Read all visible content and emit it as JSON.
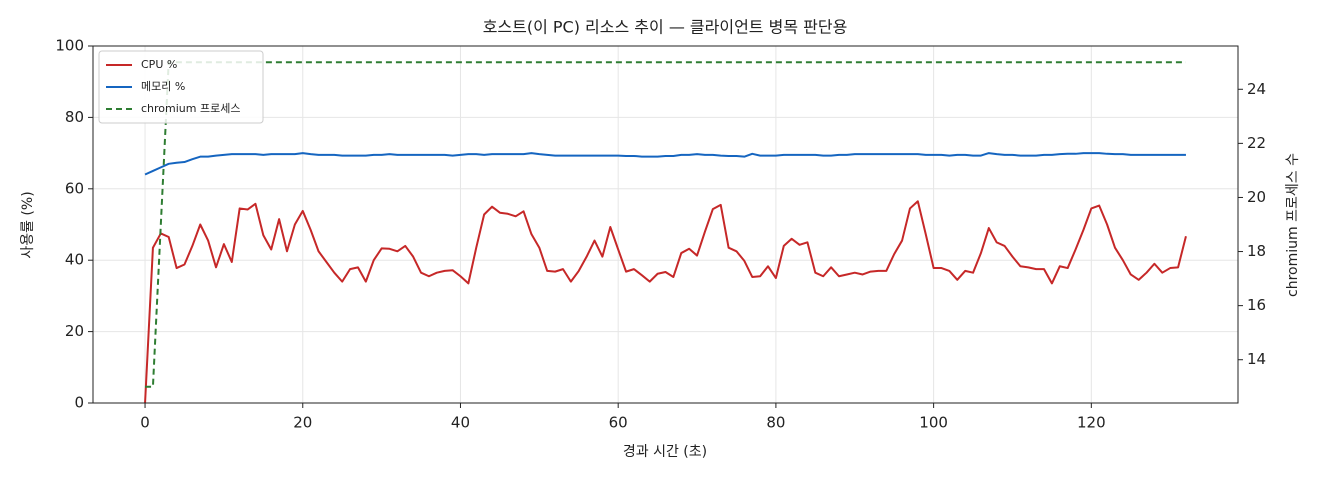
{
  "chart_data": {
    "type": "line",
    "title": "호스트(이 PC) 리소스 추이 — 클라이언트 병목 판단용",
    "x_label": "경과 시간 (초)",
    "y_label": "사용률 (%)",
    "y2_label": "chromium 프로세스 수",
    "x": [
      0,
      1,
      2,
      3,
      4,
      5,
      6,
      7,
      8,
      9,
      10,
      11,
      12,
      13,
      14,
      15,
      16,
      17,
      18,
      19,
      20,
      21,
      22,
      23,
      24,
      25,
      26,
      27,
      28,
      29,
      30,
      31,
      32,
      33,
      34,
      35,
      36,
      37,
      38,
      39,
      40,
      41,
      42,
      43,
      44,
      45,
      46,
      47,
      48,
      49,
      50,
      51,
      52,
      53,
      54,
      55,
      56,
      57,
      58,
      59,
      60,
      61,
      62,
      63,
      64,
      65,
      66,
      67,
      68,
      69,
      70,
      71,
      72,
      73,
      74,
      75,
      76,
      77,
      78,
      79,
      80,
      81,
      82,
      83,
      84,
      85,
      86,
      87,
      88,
      89,
      90,
      91,
      92,
      93,
      94,
      95,
      96,
      97,
      98,
      99,
      100,
      101,
      102,
      103,
      104,
      105,
      106,
      107,
      108,
      109,
      110,
      111,
      112,
      113,
      114,
      115,
      116,
      117,
      118,
      119,
      120,
      121,
      122,
      123,
      124,
      125,
      126,
      127,
      128,
      129,
      130,
      131,
      132
    ],
    "series": [
      {
        "name": "CPU %",
        "color": "#c62828",
        "dash": false,
        "values": [
          0,
          43.5,
          47.5,
          46.5,
          37.8,
          38.8,
          44,
          50,
          45.5,
          38,
          44.5,
          39.5,
          54.5,
          54.2,
          55.8,
          47,
          43,
          51.5,
          42.5,
          50,
          53.8,
          48.5,
          42.5,
          39.5,
          36.5,
          34,
          37.5,
          38,
          34,
          40,
          43.3,
          43.2,
          42.5,
          44,
          41,
          36.5,
          35.5,
          36.5,
          37,
          37.2,
          35.5,
          33.5,
          43.5,
          52.8,
          55,
          53.3,
          53,
          52.3,
          53.7,
          47.3,
          43.5,
          37,
          36.8,
          37.5,
          34,
          37,
          41,
          45.5,
          41,
          49.3,
          43,
          36.8,
          37.5,
          35.8,
          34,
          36.2,
          36.7,
          35.3,
          42,
          43.2,
          41.3,
          48,
          54.3,
          55.5,
          43.5,
          42.5,
          39.8,
          35.3,
          35.5,
          38.3,
          35,
          44,
          46,
          44.3,
          45,
          36.5,
          35.5,
          38,
          35.5,
          36,
          36.5,
          36,
          36.8,
          37,
          37,
          41.7,
          45.5,
          54.5,
          56.5,
          47.3,
          37.8,
          37.8,
          37,
          34.5,
          37,
          36.5,
          42,
          49,
          45,
          44,
          41,
          38.3,
          38,
          37.5,
          37.5,
          33.5,
          38.3,
          37.8,
          43,
          48.5,
          54.5,
          55.3,
          50,
          43.5,
          40,
          36,
          34.5,
          36.5,
          39,
          36.5,
          37.8,
          38,
          46.7
        ]
      },
      {
        "name": "메모리 %",
        "color": "#1565c0",
        "dash": false,
        "values": [
          64,
          65,
          66,
          67,
          67.3,
          67.5,
          68.3,
          69,
          69,
          69.3,
          69.5,
          69.7,
          69.7,
          69.7,
          69.7,
          69.5,
          69.7,
          69.7,
          69.7,
          69.7,
          70,
          69.7,
          69.5,
          69.5,
          69.5,
          69.3,
          69.3,
          69.3,
          69.3,
          69.5,
          69.5,
          69.7,
          69.5,
          69.5,
          69.5,
          69.5,
          69.5,
          69.5,
          69.5,
          69.3,
          69.5,
          69.7,
          69.7,
          69.5,
          69.7,
          69.7,
          69.7,
          69.7,
          69.7,
          70,
          69.7,
          69.5,
          69.3,
          69.3,
          69.3,
          69.3,
          69.3,
          69.3,
          69.3,
          69.3,
          69.3,
          69.2,
          69.2,
          69,
          69,
          69,
          69.2,
          69.2,
          69.5,
          69.5,
          69.7,
          69.5,
          69.5,
          69.3,
          69.2,
          69.2,
          69,
          69.8,
          69.3,
          69.3,
          69.3,
          69.5,
          69.5,
          69.5,
          69.5,
          69.5,
          69.3,
          69.3,
          69.5,
          69.5,
          69.7,
          69.7,
          69.7,
          69.7,
          69.7,
          69.7,
          69.7,
          69.7,
          69.7,
          69.5,
          69.5,
          69.5,
          69.3,
          69.5,
          69.5,
          69.3,
          69.3,
          70,
          69.7,
          69.5,
          69.5,
          69.3,
          69.3,
          69.3,
          69.5,
          69.5,
          69.7,
          69.8,
          69.8,
          70,
          70,
          70,
          69.8,
          69.7,
          69.7,
          69.5,
          69.5,
          69.5,
          69.5,
          69.5,
          69.5,
          69.5,
          69.5
        ]
      },
      {
        "name": "chromium 프로세스",
        "color": "#2e7d32",
        "dash": true,
        "axis": "y2",
        "values": [
          13,
          13,
          19,
          25,
          25,
          25,
          25,
          25,
          25,
          25,
          25,
          25,
          25,
          25,
          25,
          25,
          25,
          25,
          25,
          25,
          25,
          25,
          25,
          25,
          25,
          25,
          25,
          25,
          25,
          25,
          25,
          25,
          25,
          25,
          25,
          25,
          25,
          25,
          25,
          25,
          25,
          25,
          25,
          25,
          25,
          25,
          25,
          25,
          25,
          25,
          25,
          25,
          25,
          25,
          25,
          25,
          25,
          25,
          25,
          25,
          25,
          25,
          25,
          25,
          25,
          25,
          25,
          25,
          25,
          25,
          25,
          25,
          25,
          25,
          25,
          25,
          25,
          25,
          25,
          25,
          25,
          25,
          25,
          25,
          25,
          25,
          25,
          25,
          25,
          25,
          25,
          25,
          25,
          25,
          25,
          25,
          25,
          25,
          25,
          25,
          25,
          25,
          25,
          25,
          25,
          25,
          25,
          25,
          25,
          25,
          25,
          25,
          25,
          25,
          25,
          25,
          25,
          25,
          25,
          25,
          25,
          25,
          25,
          25,
          25,
          25,
          25,
          25,
          25,
          25,
          25,
          25,
          25
        ]
      }
    ],
    "xlim": [
      -6.6,
      138.6
    ],
    "xticks": [
      0,
      20,
      40,
      60,
      80,
      100,
      120
    ],
    "ylim": [
      0,
      100
    ],
    "yticks": [
      0,
      20,
      40,
      60,
      80,
      100
    ],
    "y2lim": [
      12.4,
      25.6
    ],
    "y2ticks": [
      14,
      16,
      18,
      20,
      22,
      24
    ],
    "grid": true,
    "legend": "upper-left"
  }
}
